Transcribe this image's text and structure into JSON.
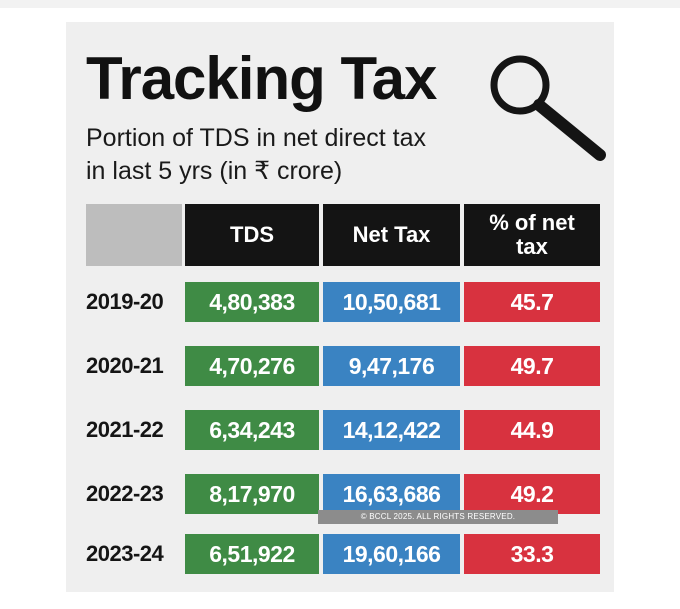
{
  "chart_data": {
    "type": "table",
    "title": "Tracking Tax",
    "subtitle_lines": [
      "Portion of TDS in net direct tax",
      "in last 5 yrs (in ₹ crore)"
    ],
    "columns": [
      "TDS",
      "Net Tax",
      "% of net tax"
    ],
    "rows": [
      {
        "year": "2019-20",
        "tds": "4,80,383",
        "net_tax": "10,50,681",
        "pct": "45.7"
      },
      {
        "year": "2020-21",
        "tds": "4,70,276",
        "net_tax": "9,47,176",
        "pct": "49.7"
      },
      {
        "year": "2021-22",
        "tds": "6,34,243",
        "net_tax": "14,12,422",
        "pct": "44.9"
      },
      {
        "year": "2022-23",
        "tds": "8,17,970",
        "net_tax": "16,63,686",
        "pct": "49.2"
      },
      {
        "year": "2023-24",
        "tds": "6,51,922",
        "net_tax": "19,60,166",
        "pct": "33.3"
      }
    ],
    "column_colors": {
      "tds": "#3f8b45",
      "net_tax": "#3a83c2",
      "pct": "#d8323f",
      "header": "#141414",
      "corner": "#bdbdbd"
    },
    "icon": "magnifying-glass-icon"
  },
  "watermark": "© BCCL 2025. ALL RIGHTS RESERVED."
}
